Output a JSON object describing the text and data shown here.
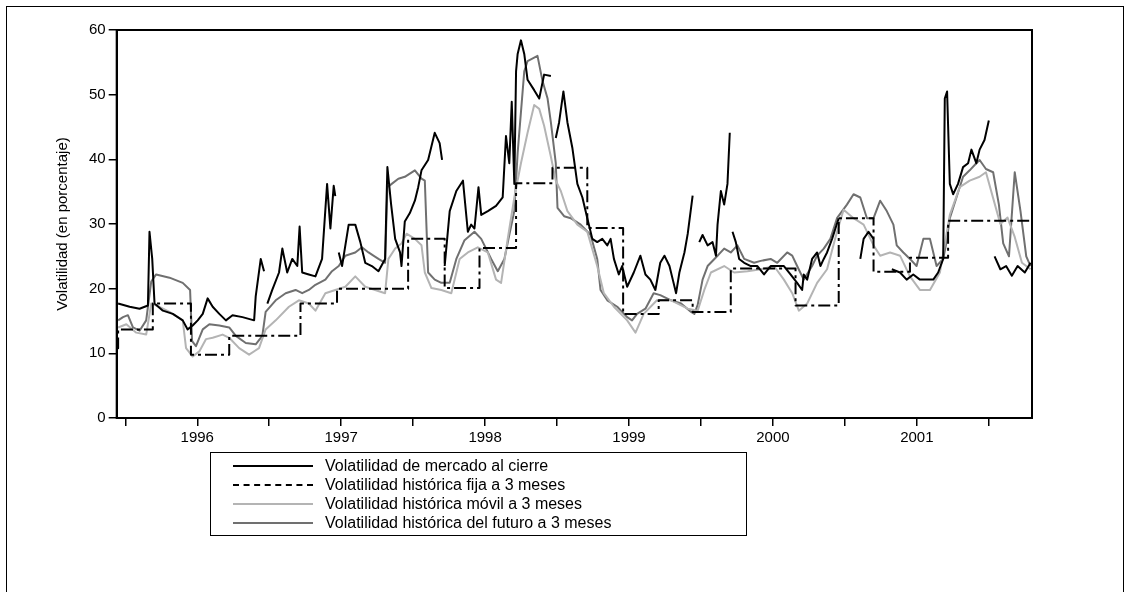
{
  "chart_data": {
    "type": "line",
    "ylabel": "Volatilidad (en porcentaje)",
    "xlim": [
      1995.94,
      2002.3
    ],
    "ylim": [
      0,
      60
    ],
    "yticks": [
      0,
      10,
      20,
      30,
      40,
      50,
      60
    ],
    "xticks": [
      {
        "value": 1996,
        "label": null
      },
      {
        "value": 1996.5,
        "label": "1996"
      },
      {
        "value": 1997,
        "label": null
      },
      {
        "value": 1997.5,
        "label": "1997"
      },
      {
        "value": 1998,
        "label": null
      },
      {
        "value": 1998.5,
        "label": "1998"
      },
      {
        "value": 1999,
        "label": null
      },
      {
        "value": 1999.5,
        "label": "1999"
      },
      {
        "value": 2000,
        "label": null
      },
      {
        "value": 2000.5,
        "label": "2000"
      },
      {
        "value": 2001,
        "label": null
      },
      {
        "value": 2001.5,
        "label": "2001"
      },
      {
        "value": 2002,
        "label": null
      }
    ],
    "grid": false,
    "legend": "bottom",
    "marker": "none",
    "line_style": "solid",
    "series": [
      {
        "name": "Volatilidad de mercado al cierre",
        "color": "#000000",
        "type": "line",
        "x": [
          1995.95,
          1996.03,
          1996.099,
          1996.157,
          1996.168,
          1996.187,
          1996.203,
          1996.261,
          1996.33,
          1996.399,
          1996.433,
          1996.468,
          1996.503,
          1996.538,
          1996.572,
          1996.607,
          1996.653,
          1996.699,
          1996.745,
          1996.814,
          1996.895,
          1996.906,
          1996.941,
          1996.964,
          1996.975,
          1996.987,
          1997.021,
          1997.068,
          1997.091,
          1997.125,
          1997.16,
          1997.195,
          1997.211,
          1997.229,
          1997.275,
          1997.321,
          1997.367,
          1997.402,
          1997.425,
          1997.448,
          1997.459,
          1997.465,
          1997.483,
          1997.506,
          1997.552,
          1997.598,
          1997.633,
          1997.667,
          1997.713,
          1997.759,
          1997.805,
          1997.821,
          1997.847,
          1997.875,
          1997.909,
          1997.919,
          1997.942,
          1997.977,
          1998.012,
          1998.035,
          1998.058,
          1998.104,
          1998.15,
          1998.184,
          1998.201,
          1998.21,
          1998.219,
          1998.254,
          1998.3,
          1998.346,
          1998.38,
          1998.403,
          1998.426,
          1998.454,
          1998.473,
          1998.519,
          1998.576,
          1998.622,
          1998.645,
          1998.668,
          1998.685,
          1998.703,
          1998.715,
          1998.726,
          1998.749,
          1998.772,
          1998.795,
          1998.841,
          1998.876,
          1998.91,
          1998.957,
          1998.965,
          1998.991,
          1999.014,
          1999.044,
          1999.072,
          1999.106,
          1999.141,
          1999.176,
          1999.21,
          1999.245,
          1999.279,
          1999.314,
          1999.349,
          1999.372,
          1999.395,
          1999.429,
          1999.452,
          1999.487,
          1999.533,
          1999.579,
          1999.614,
          1999.648,
          1999.683,
          1999.717,
          1999.746,
          1999.781,
          1999.804,
          1999.827,
          1999.85,
          1999.885,
          1999.908,
          1999.942,
          1999.95,
          1999.988,
          2000.011,
          2000.046,
          2000.08,
          2000.104,
          2000.115,
          2000.138,
          2000.161,
          2000.184,
          2000.2,
          2000.205,
          2000.219,
          2000.242,
          2000.265,
          2000.3,
          2000.346,
          2000.392,
          2000.438,
          2000.484,
          2000.53,
          2000.576,
          2000.622,
          2000.668,
          2000.703,
          2000.714,
          2000.738,
          2000.772,
          2000.807,
          2000.83,
          2000.853,
          2000.876,
          2000.911,
          2000.934,
          2000.957,
          2000.99,
          2001.107,
          2001.13,
          2001.164,
          2001.199,
          2001.22,
          2001.326,
          2001.383,
          2001.429,
          2001.475,
          2001.521,
          2001.568,
          2001.614,
          2001.648,
          2001.683,
          2001.694,
          2001.71,
          2001.729,
          2001.752,
          2001.786,
          2001.821,
          2001.856,
          2001.879,
          2001.913,
          2001.936,
          2001.97,
          2002.0,
          2002.02,
          2002.04,
          2002.08,
          2002.12,
          2002.16,
          2002.2,
          2002.25,
          2002.29
        ],
        "values": [
          17.7,
          17.2,
          16.9,
          17.4,
          28.8,
          24.6,
          17.7,
          16.6,
          16.1,
          15.1,
          13.7,
          14.3,
          15.1,
          16.1,
          18.5,
          17.2,
          16.1,
          15.1,
          15.9,
          15.6,
          15.1,
          18.8,
          24.6,
          22.7,
          null,
          17.7,
          19.8,
          22.5,
          26.2,
          22.5,
          24.6,
          23.5,
          29.6,
          22.5,
          22.2,
          21.9,
          24.6,
          36.2,
          29.3,
          35.9,
          34.3,
          null,
          25.6,
          23.5,
          29.9,
          29.9,
          27.2,
          24.0,
          23.5,
          22.7,
          24.6,
          38.8,
          33.0,
          27.7,
          25.6,
          23.5,
          30.4,
          31.7,
          33.6,
          35.7,
          38.3,
          39.9,
          44.1,
          42.5,
          39.9,
          null,
          23.5,
          32.0,
          35.1,
          36.7,
          28.8,
          29.9,
          29.3,
          35.7,
          31.4,
          32.0,
          32.8,
          34.1,
          43.6,
          39.4,
          48.9,
          36.2,
          53.6,
          56.3,
          58.4,
          56.3,
          52.3,
          50.7,
          49.4,
          53.1,
          52.9,
          null,
          43.3,
          45.7,
          50.5,
          45.7,
          41.8,
          36.2,
          34.1,
          30.9,
          27.7,
          27.2,
          27.7,
          26.7,
          27.7,
          24.6,
          22.2,
          23.5,
          20.3,
          22.5,
          25.1,
          22.2,
          21.4,
          19.8,
          24.0,
          25.1,
          23.5,
          21.4,
          19.3,
          22.5,
          25.6,
          28.5,
          34.4,
          null,
          27.2,
          28.3,
          26.7,
          27.2,
          25.1,
          29.9,
          35.1,
          33.0,
          36.2,
          44.1,
          null,
          28.8,
          27.2,
          24.6,
          24.0,
          23.5,
          23.5,
          22.2,
          23.5,
          23.5,
          23.5,
          22.2,
          20.9,
          19.8,
          22.2,
          21.4,
          24.6,
          25.6,
          23.5,
          24.6,
          25.6,
          27.7,
          29.3,
          30.9,
          null,
          24.6,
          27.7,
          28.8,
          27.7,
          null,
          23.0,
          22.5,
          21.4,
          22.2,
          21.4,
          21.4,
          21.4,
          22.5,
          24.6,
          49.4,
          50.5,
          36.2,
          34.6,
          36.2,
          38.8,
          39.4,
          41.5,
          39.4,
          41.5,
          43.0,
          46.0,
          null,
          25.0,
          23.0,
          23.5,
          22.0,
          23.5,
          22.5,
          24.0
        ]
      },
      {
        "name": "Volatilidad histórica fija a 3 meses",
        "color": "#000000",
        "type": "step",
        "line_style": "dashed",
        "x": [
          1995.94,
          1995.95,
          1996.191,
          1996.456,
          1996.722,
          1997.217,
          1997.471,
          1997.965,
          1998.219,
          1998.461,
          1998.715,
          1998.968,
          1999.21,
          1999.459,
          1999.706,
          1999.942,
          2000.207,
          2000.657,
          2000.957,
          2001.199,
          2001.452,
          2001.717,
          2002.3
        ],
        "values": [
          10.8,
          13.7,
          17.7,
          9.8,
          12.7,
          17.7,
          20.0,
          27.7,
          20.1,
          26.3,
          36.3,
          38.7,
          29.4,
          16.1,
          18.2,
          16.4,
          23.1,
          17.4,
          30.9,
          22.6,
          24.8,
          30.5,
          30.5
        ]
      },
      {
        "name": "Volatilidad histórica móvil a 3 meses",
        "color": "#b4b4b4",
        "type": "line",
        "x": [
          1995.95,
          1996.007,
          1996.076,
          1996.145,
          1996.18,
          1996.237,
          1996.307,
          1996.399,
          1996.422,
          1996.468,
          1996.514,
          1996.561,
          1996.607,
          1996.676,
          1996.722,
          1996.791,
          1996.86,
          1996.929,
          1996.975,
          1997.045,
          1997.137,
          1997.206,
          1997.275,
          1997.321,
          1997.39,
          1997.459,
          1997.529,
          1997.598,
          1997.667,
          1997.736,
          1997.805,
          1997.828,
          1997.875,
          1997.919,
          1997.954,
          1998.012,
          1998.058,
          1998.081,
          1998.127,
          1998.196,
          1998.265,
          1998.323,
          1998.38,
          1998.449,
          1998.519,
          1998.576,
          1998.611,
          1998.657,
          1998.703,
          1998.749,
          1998.795,
          1998.841,
          1998.876,
          1998.91,
          1998.957,
          1998.991,
          1999.026,
          1999.072,
          1999.141,
          1999.21,
          1999.279,
          1999.325,
          1999.395,
          1999.487,
          1999.545,
          1999.602,
          1999.694,
          1999.792,
          1999.908,
          1999.977,
          2000.023,
          2000.069,
          2000.161,
          2000.23,
          2000.323,
          2000.415,
          2000.507,
          2000.576,
          2000.634,
          2000.68,
          2000.738,
          2000.807,
          2000.876,
          2000.945,
          2000.991,
          2001.06,
          2001.13,
          2001.199,
          2001.245,
          2001.314,
          2001.383,
          2001.452,
          2001.521,
          2001.591,
          2001.66,
          2001.729,
          2001.798,
          2001.867,
          2001.936,
          2001.98,
          2002.03,
          2002.08,
          2002.13,
          2002.18,
          2002.23,
          2002.29
        ],
        "values": [
          14.0,
          14.5,
          13.2,
          12.9,
          17.7,
          17.2,
          16.4,
          15.1,
          10.8,
          9.5,
          10.3,
          12.2,
          12.4,
          12.9,
          12.4,
          10.8,
          9.8,
          10.8,
          13.7,
          15.1,
          17.2,
          18.2,
          17.7,
          16.6,
          19.3,
          19.8,
          20.3,
          21.9,
          20.3,
          19.8,
          19.3,
          24.6,
          26.2,
          27.0,
          28.5,
          27.7,
          26.7,
          22.5,
          20.1,
          19.8,
          19.3,
          24.6,
          25.6,
          26.4,
          25.6,
          21.4,
          20.9,
          27.7,
          34.1,
          39.4,
          44.1,
          48.4,
          47.8,
          45.2,
          40.4,
          36.7,
          35.1,
          32.0,
          29.9,
          28.8,
          23.5,
          19.3,
          17.2,
          15.1,
          13.2,
          16.1,
          18.2,
          18.2,
          16.9,
          16.6,
          19.8,
          22.5,
          23.5,
          22.5,
          22.7,
          23.0,
          23.5,
          21.4,
          19.3,
          16.6,
          17.7,
          20.9,
          23.0,
          28.8,
          32.2,
          30.9,
          29.9,
          26.7,
          25.1,
          25.6,
          25.1,
          21.9,
          19.8,
          19.8,
          22.5,
          31.4,
          35.7,
          36.7,
          37.3,
          38.0,
          34.0,
          30.0,
          31.0,
          28.0,
          24.0,
          23.0
        ]
      },
      {
        "name": "Volatilidad histórica del futuro a 3 meses",
        "color": "#707070",
        "type": "line",
        "x": [
          1995.95,
          1995.984,
          1996.018,
          1996.053,
          1996.099,
          1996.145,
          1996.18,
          1996.214,
          1996.307,
          1996.399,
          1996.45,
          1996.464,
          1996.491,
          1996.538,
          1996.584,
          1996.653,
          1996.722,
          1996.768,
          1996.837,
          1996.906,
          1996.952,
          1996.975,
          1997.045,
          1997.114,
          1997.183,
          1997.229,
          1997.275,
          1997.321,
          1997.39,
          1997.436,
          1997.483,
          1997.529,
          1997.598,
          1997.644,
          1997.69,
          1997.759,
          1997.805,
          1997.821,
          1997.851,
          1997.897,
          1997.942,
          1998.012,
          1998.058,
          1998.081,
          1998.104,
          1998.15,
          1998.196,
          1998.254,
          1998.3,
          1998.357,
          1998.426,
          1998.473,
          1998.542,
          1998.588,
          1998.634,
          1998.668,
          1998.703,
          1998.726,
          1998.772,
          1998.795,
          1998.864,
          1998.899,
          1998.934,
          1998.957,
          1998.991,
          1999.003,
          1999.049,
          1999.095,
          1999.164,
          1999.233,
          1999.279,
          1999.302,
          1999.349,
          1999.418,
          1999.487,
          1999.521,
          1999.556,
          1999.614,
          1999.671,
          1999.717,
          1999.792,
          1999.862,
          1999.931,
          1999.954,
          1999.977,
          2000.011,
          2000.046,
          2000.115,
          2000.161,
          2000.207,
          2000.253,
          2000.3,
          2000.369,
          2000.415,
          2000.484,
          2000.53,
          2000.599,
          2000.634,
          2000.668,
          2000.714,
          2000.772,
          2000.807,
          2000.853,
          2000.899,
          2000.945,
          2001.014,
          2001.06,
          2001.107,
          2001.153,
          2001.199,
          2001.245,
          2001.291,
          2001.337,
          2001.36,
          2001.406,
          2001.452,
          2001.498,
          2001.545,
          2001.591,
          2001.637,
          2001.683,
          2001.706,
          2001.729,
          2001.775,
          2001.821,
          2001.867,
          2001.913,
          2001.936,
          2001.98,
          2002.03,
          2002.07,
          2002.1,
          2002.14,
          2002.18,
          2002.22,
          2002.26,
          2002.29
        ],
        "values": [
          15.1,
          15.6,
          15.9,
          14.0,
          13.5,
          15.1,
          21.1,
          22.2,
          21.7,
          20.9,
          19.8,
          11.9,
          11.1,
          13.7,
          14.5,
          14.3,
          14.0,
          12.7,
          11.6,
          11.4,
          12.7,
          16.4,
          18.2,
          19.3,
          19.8,
          19.3,
          19.8,
          20.6,
          21.4,
          22.7,
          23.5,
          25.1,
          25.6,
          26.4,
          25.6,
          24.6,
          24.0,
          35.7,
          36.2,
          37.0,
          37.3,
          38.3,
          37.0,
          36.7,
          22.5,
          21.4,
          20.9,
          20.9,
          24.6,
          27.5,
          28.8,
          27.7,
          24.6,
          22.7,
          24.6,
          28.3,
          32.0,
          41.0,
          53.6,
          55.2,
          56.0,
          52.1,
          49.4,
          45.7,
          39.4,
          32.5,
          31.2,
          30.9,
          29.9,
          28.3,
          24.6,
          19.8,
          18.2,
          17.2,
          15.6,
          15.1,
          16.1,
          16.9,
          19.3,
          19.0,
          18.2,
          17.7,
          16.4,
          16.1,
          17.5,
          21.4,
          23.5,
          25.1,
          26.2,
          25.6,
          26.7,
          24.6,
          24.0,
          24.3,
          24.6,
          24.0,
          25.6,
          25.1,
          23.5,
          21.4,
          23.5,
          25.1,
          26.2,
          27.7,
          30.9,
          33.0,
          34.6,
          34.1,
          30.9,
          30.9,
          33.6,
          32.0,
          29.9,
          26.7,
          25.6,
          24.6,
          23.5,
          27.7,
          27.7,
          23.5,
          24.6,
          27.2,
          30.9,
          34.1,
          37.3,
          38.3,
          39.4,
          39.9,
          38.5,
          38.0,
          33.0,
          27.0,
          25.0,
          38.0,
          32.0,
          25.0,
          23.5
        ]
      }
    ]
  }
}
